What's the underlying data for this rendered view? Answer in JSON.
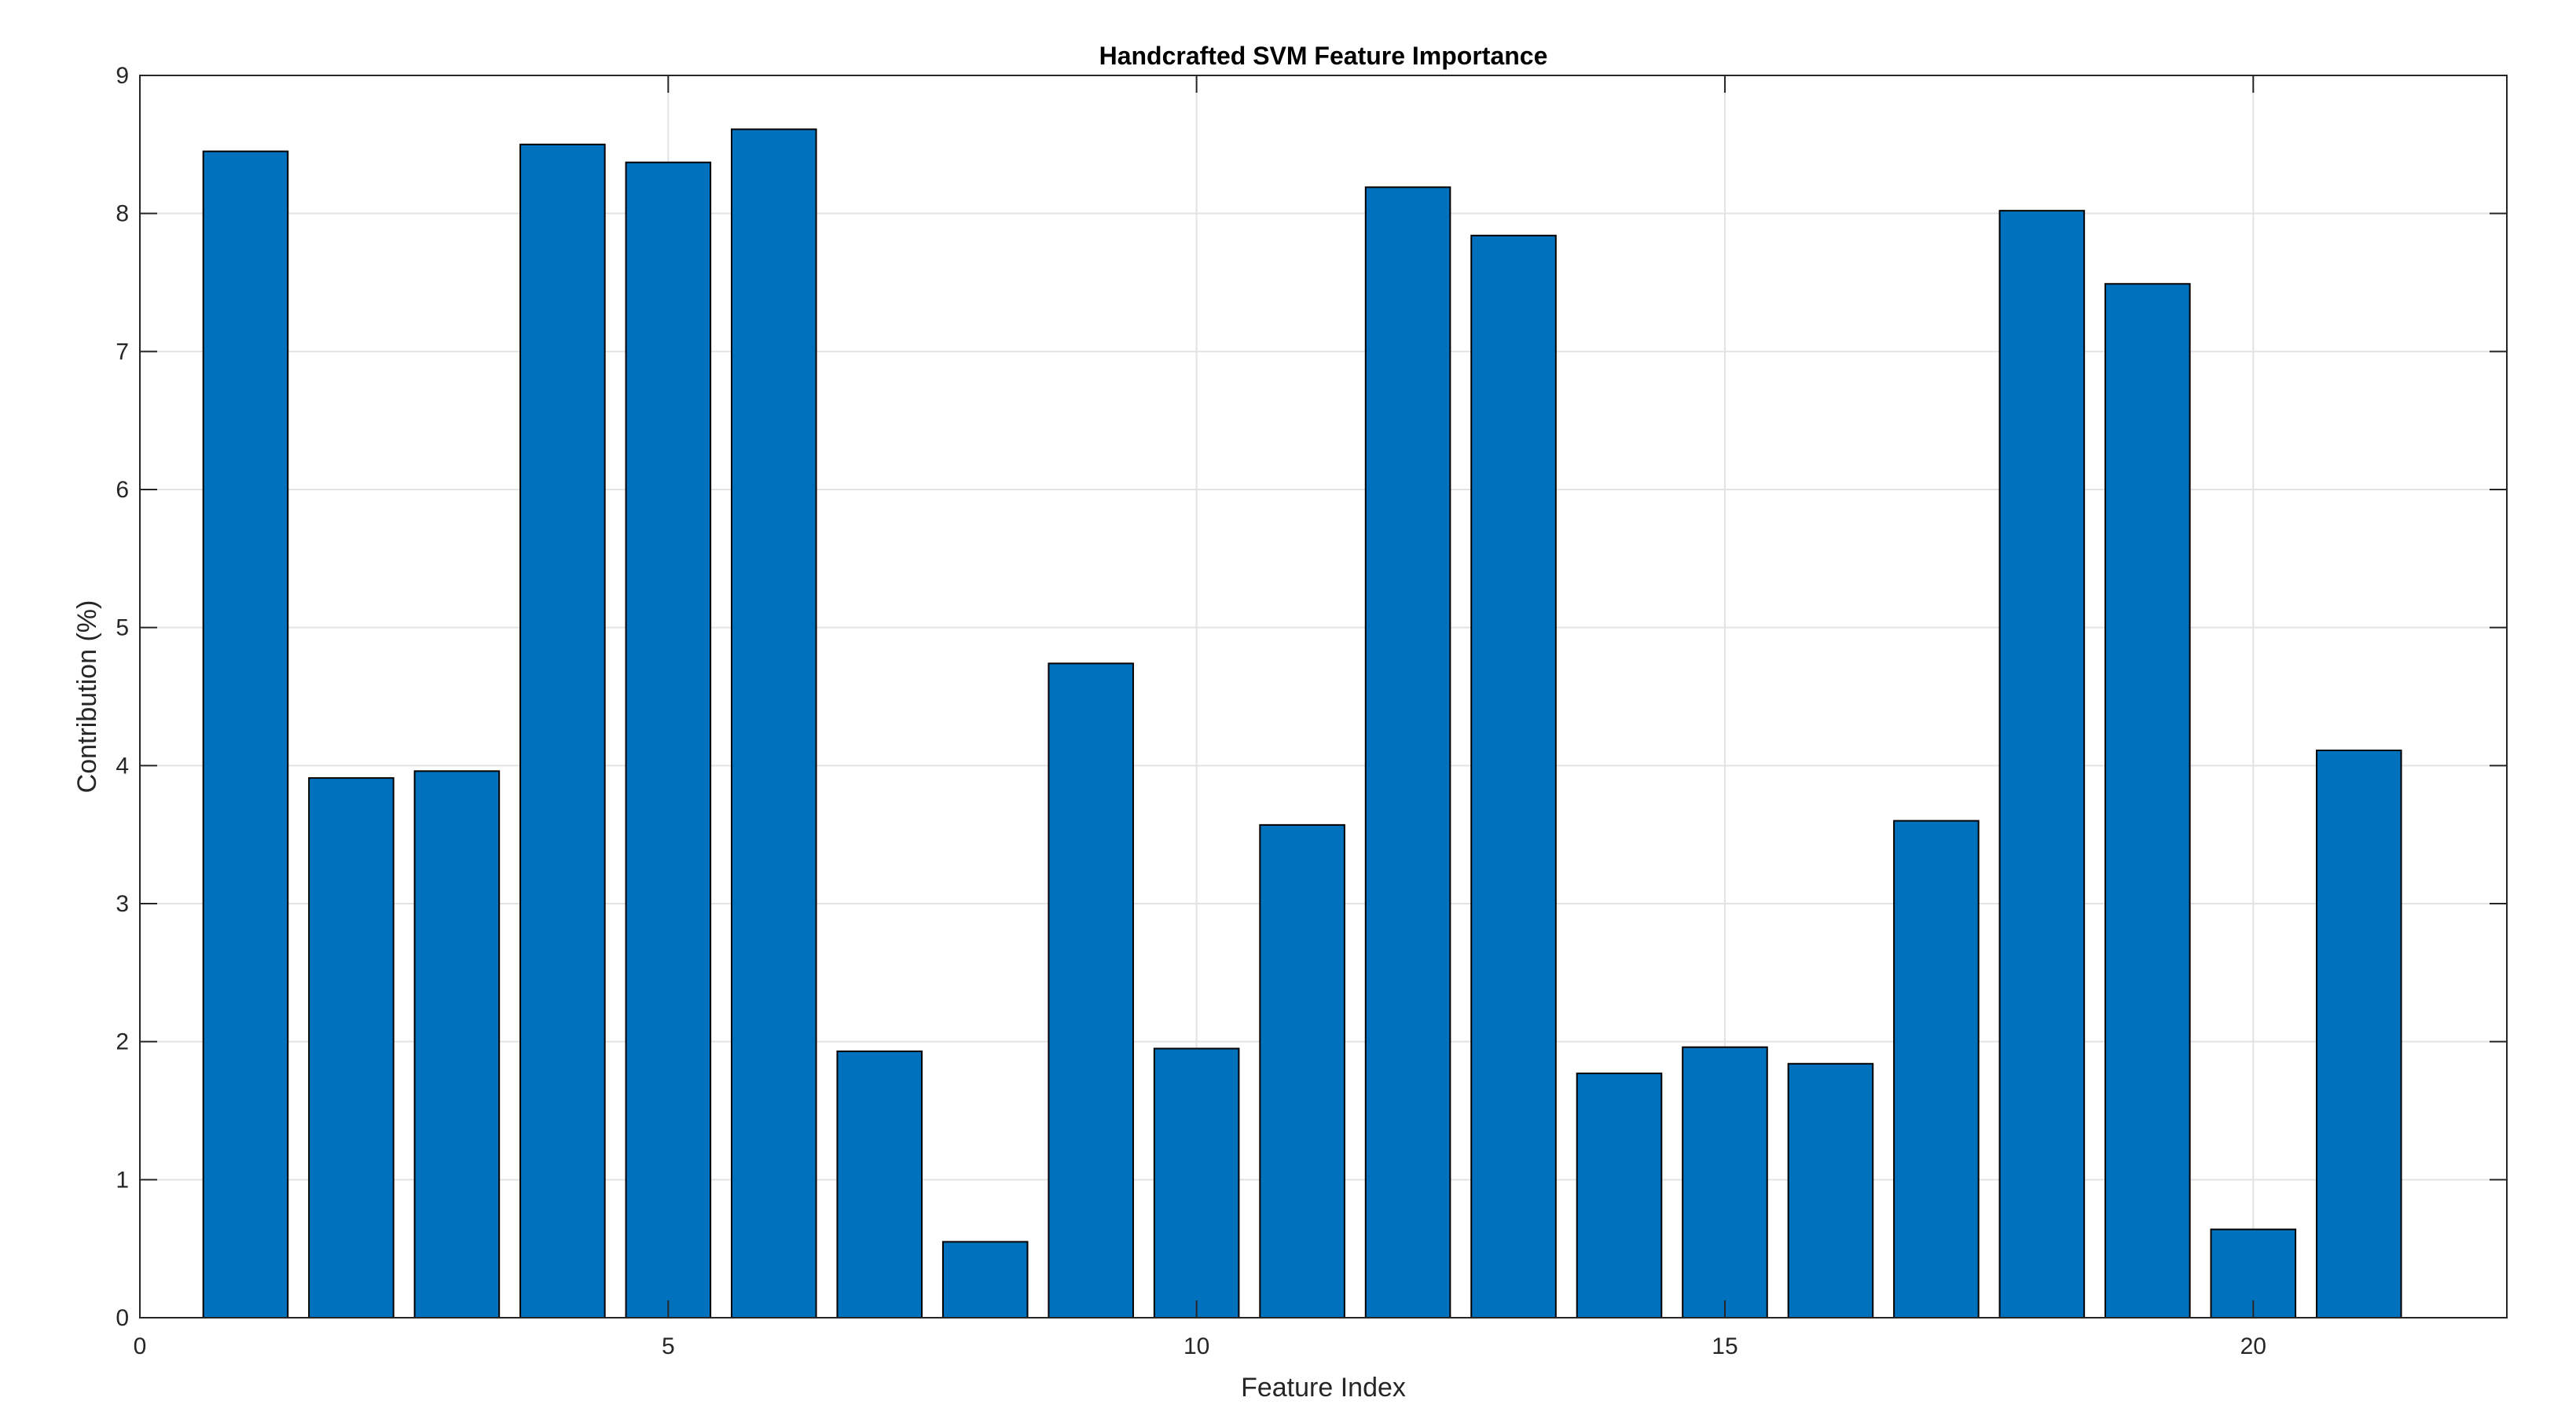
{
  "chart_data": {
    "type": "bar",
    "title": "Handcrafted SVM Feature Importance",
    "xlabel": "Feature Index",
    "ylabel": "Contribution (%)",
    "x": [
      1,
      2,
      3,
      4,
      5,
      6,
      7,
      8,
      9,
      10,
      11,
      12,
      13,
      14,
      15,
      16,
      17,
      18,
      19,
      20,
      21
    ],
    "values": [
      8.45,
      3.91,
      3.96,
      8.5,
      8.37,
      8.61,
      1.93,
      0.55,
      4.74,
      1.95,
      3.57,
      8.19,
      7.84,
      1.77,
      1.96,
      1.84,
      3.6,
      8.02,
      7.49,
      0.64,
      4.11
    ],
    "xlim": [
      0,
      22.4
    ],
    "ylim": [
      0,
      9
    ],
    "xticks": [
      "0",
      "5",
      "10",
      "15",
      "20"
    ],
    "yticks": [
      "0",
      "1",
      "2",
      "3",
      "4",
      "5",
      "6",
      "7",
      "8",
      "9"
    ],
    "grid": true,
    "bar_color": "#0072BD",
    "edge_color": "#000000"
  }
}
